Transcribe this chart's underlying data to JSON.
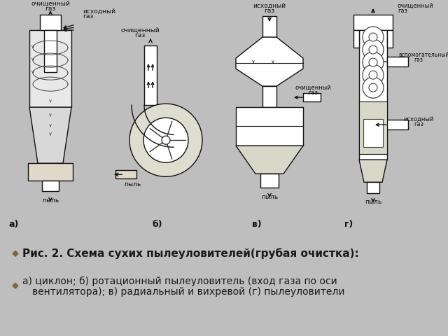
{
  "title_line1": "Рис. 2. Схема сухих пылеуловителей(грубая очистка):",
  "title_line2": "а) циклон; б) ротационный пылеуловитель (вход газа по оси",
  "title_line3": "вентилятора); в) радиальный и вихревой (г) пылеуловители",
  "bullet_color": "#7A6840",
  "caption_bg": "#C8A96E",
  "diagram_bg": "#FFFFFF",
  "text_color": "#1A1A1A",
  "caption_fontsize": 11,
  "fig_width": 6.4,
  "fig_height": 4.8,
  "dpi": 100
}
